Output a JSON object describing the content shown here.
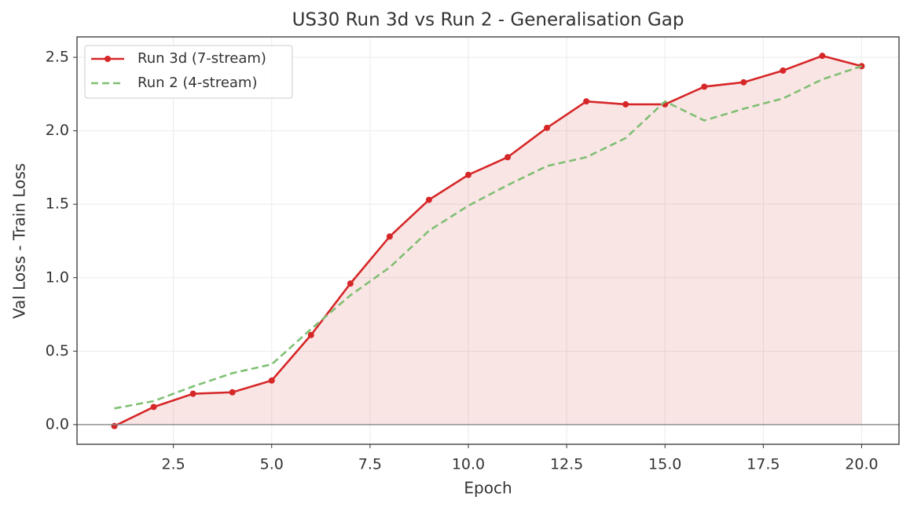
{
  "chart_data": {
    "type": "line",
    "title": "US30 Run 3d vs Run 2 - Generalisation Gap",
    "x_label": "Epoch",
    "y_label": "Val Loss - Train Loss",
    "x": [
      1,
      2,
      3,
      4,
      5,
      6,
      7,
      8,
      9,
      10,
      11,
      12,
      13,
      14,
      15,
      16,
      17,
      18,
      19,
      20
    ],
    "series": [
      {
        "name": "Run 3d (7-stream)",
        "color": "#d62728",
        "style": "solid",
        "markers": true,
        "fill": true,
        "values": [
          -0.01,
          0.12,
          0.21,
          0.22,
          0.3,
          0.61,
          0.96,
          1.28,
          1.53,
          1.7,
          1.82,
          2.02,
          2.2,
          2.18,
          2.18,
          2.3,
          2.33,
          2.41,
          2.51,
          2.44
        ]
      },
      {
        "name": "Run 2 (4-stream)",
        "color": "#7fbf73",
        "style": "dashed",
        "markers": false,
        "fill": false,
        "values": [
          0.11,
          0.16,
          0.26,
          0.35,
          0.41,
          0.65,
          0.88,
          1.07,
          1.32,
          1.49,
          1.63,
          1.76,
          1.82,
          1.95,
          2.2,
          2.07,
          2.15,
          2.22,
          2.35,
          2.44
        ]
      }
    ],
    "xlim": [
      0.05,
      20.95
    ],
    "ylim": [
      -0.134,
      2.639
    ],
    "xticks": [
      2.5,
      {
        "value": 5,
        "label": "5.0"
      },
      7.5,
      {
        "value": 10,
        "label": "10.0"
      },
      12.5,
      {
        "value": 15,
        "label": "15.0"
      },
      17.5,
      {
        "value": 20,
        "label": "20.0"
      }
    ],
    "yticks": [
      {
        "value": 0,
        "label": "0.0"
      },
      0.5,
      {
        "value": 1,
        "label": "1.0"
      },
      1.5,
      {
        "value": 2,
        "label": "2.0"
      },
      2.5
    ],
    "hline": 0,
    "grid": true,
    "legend": "upper left"
  }
}
